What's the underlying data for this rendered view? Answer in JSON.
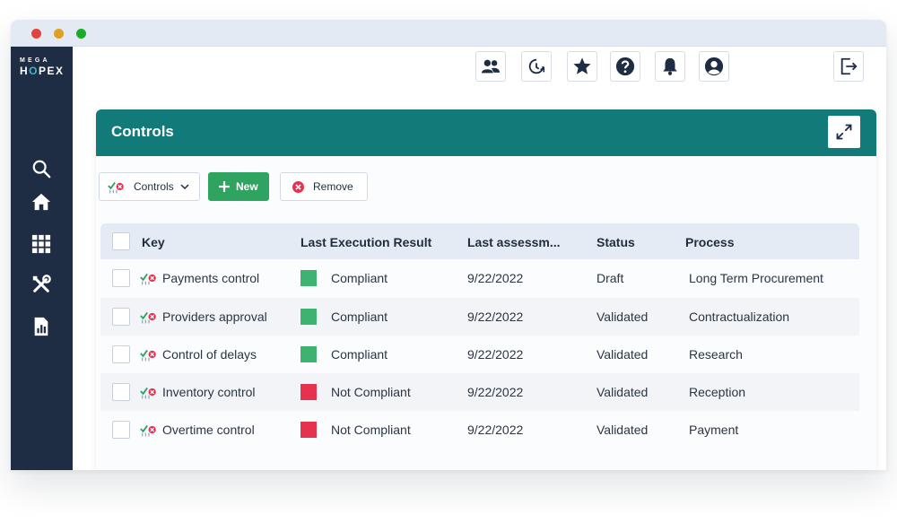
{
  "brand": {
    "top": "MEGA",
    "bottom_left": "H",
    "bottom_o": "O",
    "bottom_right": "PEX"
  },
  "sidebar": {
    "items": [
      {
        "icon": "search-icon"
      },
      {
        "icon": "home-icon"
      },
      {
        "icon": "apps-grid-icon"
      },
      {
        "icon": "tools-icon"
      },
      {
        "icon": "report-icon"
      }
    ]
  },
  "topbar": {
    "buttons": [
      "users-icon",
      "history-icon",
      "star-icon",
      "help-icon",
      "bell-icon",
      "account-icon"
    ],
    "logout": "logout-icon"
  },
  "panel": {
    "title": "Controls"
  },
  "toolbar": {
    "controls_label": "Controls",
    "new_label": "New",
    "remove_label": "Remove"
  },
  "table": {
    "columns": [
      "Key",
      "Last Execution Result",
      "Last assessm...",
      "Status",
      "Process"
    ],
    "rows": [
      {
        "key": "Payments control",
        "result": "Compliant",
        "result_color": "#3db36f",
        "date": "9/22/2022",
        "status": "Draft",
        "process": "Long Term Procurement"
      },
      {
        "key": "Providers approval",
        "result": "Compliant",
        "result_color": "#3db36f",
        "date": "9/22/2022",
        "status": "Validated",
        "process": "Contractualization"
      },
      {
        "key": "Control of delays",
        "result": "Compliant",
        "result_color": "#3db36f",
        "date": "9/22/2022",
        "status": "Validated",
        "process": "Research"
      },
      {
        "key": "Inventory control",
        "result": "Not Compliant",
        "result_color": "#e5334f",
        "date": "9/22/2022",
        "status": "Validated",
        "process": "Reception"
      },
      {
        "key": "Overtime control",
        "result": "Not Compliant",
        "result_color": "#e5334f",
        "date": "9/22/2022",
        "status": "Validated",
        "process": "Payment"
      }
    ]
  },
  "colors": {
    "sidebar": "#1f2d44",
    "panel_header": "#127a78",
    "new_button": "#2fa461",
    "compliant": "#3db36f",
    "not_compliant": "#e5334f"
  }
}
